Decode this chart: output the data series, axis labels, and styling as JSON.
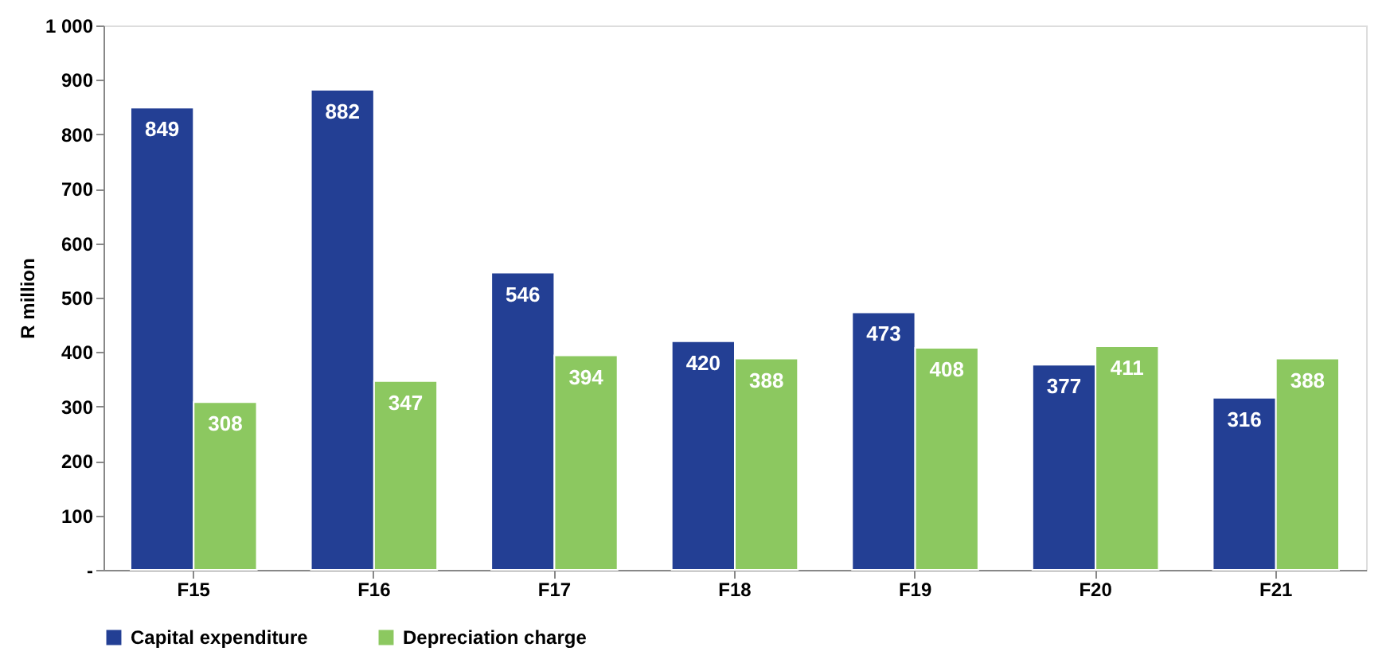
{
  "chart_data": {
    "type": "bar",
    "ylabel": "R million",
    "categories": [
      "F15",
      "F16",
      "F17",
      "F18",
      "F19",
      "F20",
      "F21"
    ],
    "series": [
      {
        "name": "Capital expenditure",
        "color": "#233f94",
        "values": [
          849,
          882,
          546,
          420,
          473,
          377,
          316
        ]
      },
      {
        "name": "Depreciation charge",
        "color": "#8cc860",
        "values": [
          308,
          347,
          394,
          388,
          408,
          411,
          388
        ]
      }
    ],
    "ylim": [
      0,
      1000
    ],
    "yticks": [
      {
        "value": 0,
        "label": "-"
      },
      100,
      200,
      300,
      400,
      500,
      600,
      700,
      800,
      900,
      {
        "value": 1000,
        "label": "1 000"
      }
    ],
    "grid": false,
    "legend": "bottom",
    "data_labels": true
  }
}
